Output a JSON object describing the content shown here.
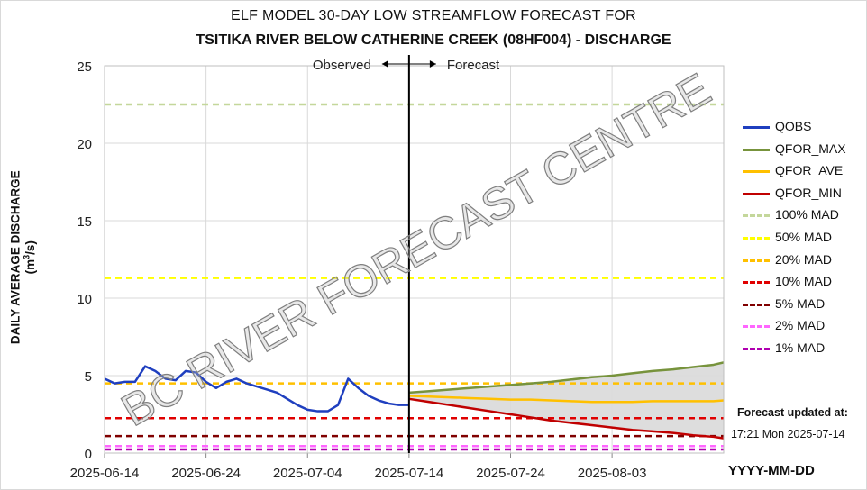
{
  "chart_data": {
    "type": "line",
    "title": "ELF MODEL 30-DAY LOW STREAMFLOW FORECAST FOR",
    "subtitle": "TSITIKA RIVER BELOW CATHERINE CREEK (08HF004) - DISCHARGE",
    "ylabel_main": "DAILY AVERAGE DISCHARGE (m",
    "ylabel_sup": "3",
    "ylabel_tail": "/s)",
    "xlabel": "YYYY-MM-DD",
    "ylim": [
      0,
      25
    ],
    "yticks": [
      "0",
      "5",
      "10",
      "15",
      "20",
      "25"
    ],
    "xticks": [
      "2025-06-14",
      "2025-06-24",
      "2025-07-04",
      "2025-07-14",
      "2025-07-24",
      "2025-08-03"
    ],
    "x_start_day": 0,
    "x_end_day": 61,
    "grid": true,
    "legend_position": "right",
    "annotations": {
      "observed": "Observed",
      "forecast": "Forecast",
      "divider_day": 30
    },
    "watermark": "BC RIVER FORECAST CENTRE",
    "forecast_updated_label": "Forecast updated at:",
    "forecast_updated_time": "17:21 Mon 2025-07-14",
    "series": [
      {
        "name": "QOBS",
        "color": "#1f3fbf",
        "style": "solid",
        "x": [
          0,
          1,
          2,
          3,
          4,
          5,
          6,
          7,
          8,
          9,
          10,
          11,
          12,
          13,
          14,
          15,
          16,
          17,
          18,
          19,
          20,
          21,
          22,
          23,
          24,
          25,
          26,
          27,
          28,
          29,
          30
        ],
        "values": [
          4.8,
          4.5,
          4.6,
          4.6,
          5.6,
          5.3,
          4.8,
          4.7,
          5.3,
          5.2,
          4.6,
          4.2,
          4.6,
          4.8,
          4.5,
          4.3,
          4.1,
          3.9,
          3.5,
          3.1,
          2.8,
          2.7,
          2.7,
          3.1,
          4.8,
          4.2,
          3.7,
          3.4,
          3.2,
          3.1,
          3.1
        ]
      },
      {
        "name": "QFOR_MAX",
        "color": "#77933c",
        "style": "solid",
        "x": [
          30,
          32,
          34,
          36,
          38,
          40,
          42,
          44,
          46,
          48,
          50,
          52,
          54,
          56,
          58,
          60,
          61
        ],
        "values": [
          3.9,
          4.0,
          4.1,
          4.2,
          4.3,
          4.4,
          4.5,
          4.6,
          4.75,
          4.9,
          5.0,
          5.15,
          5.3,
          5.4,
          5.55,
          5.7,
          5.85
        ]
      },
      {
        "name": "QFOR_AVE",
        "color": "#ffc000",
        "style": "solid",
        "x": [
          30,
          32,
          34,
          36,
          38,
          40,
          42,
          44,
          46,
          48,
          50,
          52,
          54,
          56,
          58,
          60,
          61
        ],
        "values": [
          3.7,
          3.65,
          3.6,
          3.55,
          3.5,
          3.45,
          3.45,
          3.4,
          3.35,
          3.3,
          3.3,
          3.3,
          3.35,
          3.35,
          3.35,
          3.35,
          3.4
        ]
      },
      {
        "name": "QFOR_MIN",
        "color": "#c00000",
        "style": "solid",
        "x": [
          30,
          32,
          34,
          36,
          38,
          40,
          42,
          44,
          46,
          48,
          50,
          52,
          54,
          56,
          58,
          60,
          61
        ],
        "values": [
          3.5,
          3.3,
          3.1,
          2.9,
          2.7,
          2.5,
          2.3,
          2.1,
          1.95,
          1.8,
          1.65,
          1.5,
          1.4,
          1.3,
          1.15,
          1.05,
          0.95
        ]
      },
      {
        "name": "100% MAD",
        "color": "#c4d79b",
        "style": "dashed",
        "constant": 22.5
      },
      {
        "name": "50% MAD",
        "color": "#ffff00",
        "style": "dashed",
        "constant": 11.3
      },
      {
        "name": "20% MAD",
        "color": "#ffc000",
        "style": "dashed",
        "constant": 4.5
      },
      {
        "name": "10% MAD",
        "color": "#e00000",
        "style": "dashed",
        "constant": 2.25
      },
      {
        "name": "5% MAD",
        "color": "#800000",
        "style": "dashed",
        "constant": 1.1
      },
      {
        "name": "2% MAD",
        "color": "#ff66ff",
        "style": "dashed",
        "constant": 0.45
      },
      {
        "name": "1% MAD",
        "color": "#b000b0",
        "style": "dashed",
        "constant": 0.23
      }
    ]
  }
}
